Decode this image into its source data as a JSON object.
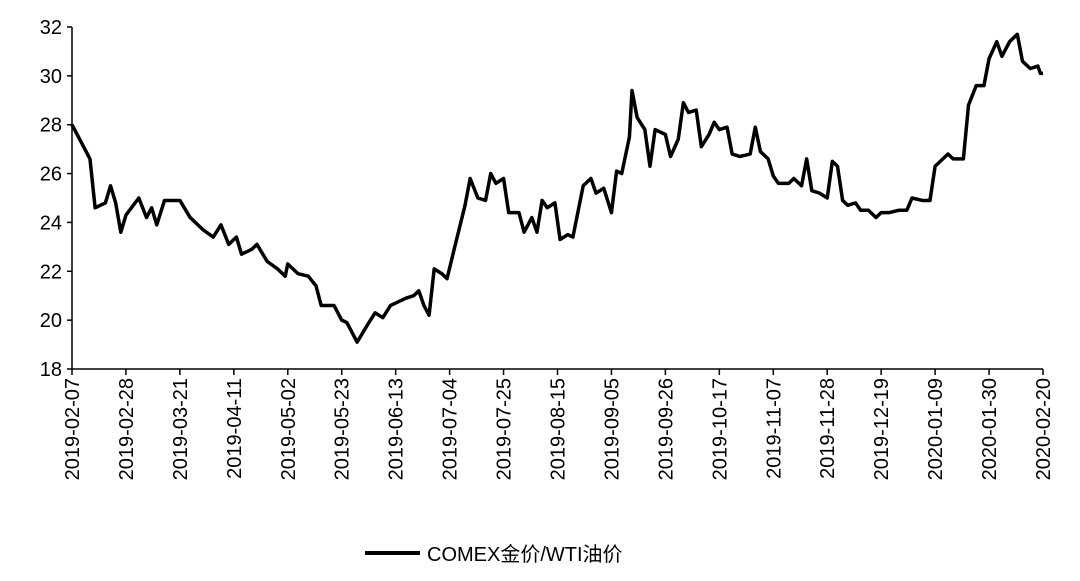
{
  "chart_data": {
    "type": "line",
    "x": [
      "2019-02-07",
      "2019-02-10",
      "2019-02-14",
      "2019-02-16",
      "2019-02-20",
      "2019-02-22",
      "2019-02-24",
      "2019-02-26",
      "2019-02-28",
      "2019-03-05",
      "2019-03-08",
      "2019-03-10",
      "2019-03-12",
      "2019-03-15",
      "2019-03-21",
      "2019-03-25",
      "2019-03-30",
      "2019-04-03",
      "2019-04-06",
      "2019-04-09",
      "2019-04-12",
      "2019-04-14",
      "2019-04-18",
      "2019-04-20",
      "2019-04-24",
      "2019-04-28",
      "2019-05-01",
      "2019-05-02",
      "2019-05-06",
      "2019-05-10",
      "2019-05-13",
      "2019-05-15",
      "2019-05-20",
      "2019-05-23",
      "2019-05-25",
      "2019-05-29",
      "2019-06-02",
      "2019-06-05",
      "2019-06-08",
      "2019-06-11",
      "2019-06-13",
      "2019-06-17",
      "2019-06-20",
      "2019-06-22",
      "2019-06-24",
      "2019-06-26",
      "2019-06-28",
      "2019-07-01",
      "2019-07-03",
      "2019-07-06",
      "2019-07-10",
      "2019-07-12",
      "2019-07-15",
      "2019-07-18",
      "2019-07-20",
      "2019-07-22",
      "2019-07-25",
      "2019-07-27",
      "2019-07-31",
      "2019-08-02",
      "2019-08-05",
      "2019-08-07",
      "2019-08-09",
      "2019-08-11",
      "2019-08-14",
      "2019-08-16",
      "2019-08-19",
      "2019-08-21",
      "2019-08-25",
      "2019-08-28",
      "2019-08-30",
      "2019-09-02",
      "2019-09-05",
      "2019-09-07",
      "2019-09-09",
      "2019-09-12",
      "2019-09-13",
      "2019-09-15",
      "2019-09-18",
      "2019-09-20",
      "2019-09-22",
      "2019-09-26",
      "2019-09-28",
      "2019-10-01",
      "2019-10-03",
      "2019-10-05",
      "2019-10-08",
      "2019-10-10",
      "2019-10-13",
      "2019-10-15",
      "2019-10-17",
      "2019-10-20",
      "2019-10-22",
      "2019-10-25",
      "2019-10-29",
      "2019-10-31",
      "2019-11-02",
      "2019-11-05",
      "2019-11-07",
      "2019-11-09",
      "2019-11-13",
      "2019-11-15",
      "2019-11-18",
      "2019-11-20",
      "2019-11-22",
      "2019-11-25",
      "2019-11-28",
      "2019-11-30",
      "2019-12-02",
      "2019-12-04",
      "2019-12-06",
      "2019-12-09",
      "2019-12-11",
      "2019-12-14",
      "2019-12-17",
      "2019-12-19",
      "2019-12-22",
      "2019-12-26",
      "2019-12-29",
      "2019-12-31",
      "2020-01-04",
      "2020-01-07",
      "2020-01-09",
      "2020-01-11",
      "2020-01-14",
      "2020-01-16",
      "2020-01-20",
      "2020-01-22",
      "2020-01-25",
      "2020-01-28",
      "2020-01-30",
      "2020-02-02",
      "2020-02-04",
      "2020-02-07",
      "2020-02-10",
      "2020-02-12",
      "2020-02-15",
      "2020-02-18",
      "2020-02-19",
      "2020-02-20"
    ],
    "series": [
      {
        "name": "COMEX金价/WTI油价",
        "color": "#000000",
        "values": [
          28.0,
          27.4,
          26.6,
          24.6,
          24.8,
          25.5,
          24.8,
          23.6,
          24.3,
          25.0,
          24.2,
          24.6,
          23.9,
          24.9,
          24.9,
          24.2,
          23.7,
          23.4,
          23.9,
          23.1,
          23.4,
          22.7,
          22.9,
          23.1,
          22.4,
          22.1,
          21.8,
          22.3,
          21.9,
          21.8,
          21.4,
          20.6,
          20.6,
          20.0,
          19.9,
          19.1,
          19.8,
          20.3,
          20.1,
          20.6,
          20.7,
          20.9,
          21.0,
          21.2,
          20.6,
          20.2,
          22.1,
          21.9,
          21.7,
          23.0,
          24.7,
          25.8,
          25.0,
          24.9,
          26.0,
          25.6,
          25.8,
          24.4,
          24.4,
          23.6,
          24.2,
          23.6,
          24.9,
          24.6,
          24.8,
          23.3,
          23.5,
          23.4,
          25.5,
          25.8,
          25.2,
          25.4,
          24.4,
          26.1,
          26.0,
          27.5,
          29.4,
          28.3,
          27.8,
          26.3,
          27.8,
          27.6,
          26.7,
          27.4,
          28.9,
          28.5,
          28.6,
          27.1,
          27.6,
          28.1,
          27.8,
          27.9,
          26.8,
          26.7,
          26.8,
          27.9,
          26.9,
          26.6,
          25.9,
          25.6,
          25.6,
          25.8,
          25.5,
          26.6,
          25.3,
          25.2,
          25.0,
          26.5,
          26.3,
          24.9,
          24.7,
          24.8,
          24.5,
          24.5,
          24.2,
          24.4,
          24.4,
          24.5,
          24.5,
          25.0,
          24.9,
          24.9,
          26.3,
          26.5,
          26.8,
          26.6,
          26.6,
          28.8,
          29.6,
          29.6,
          30.7,
          31.4,
          30.8,
          31.4,
          31.7,
          30.6,
          30.3,
          30.4,
          30.1,
          30.1
        ]
      }
    ],
    "xlim": [
      "2019-02-07",
      "2020-02-20"
    ],
    "xticks": [
      "2019-02-07",
      "2019-02-28",
      "2019-03-21",
      "2019-04-11",
      "2019-05-02",
      "2019-05-23",
      "2019-06-13",
      "2019-07-04",
      "2019-07-25",
      "2019-08-15",
      "2019-09-05",
      "2019-09-26",
      "2019-10-17",
      "2019-11-07",
      "2019-11-28",
      "2019-12-19",
      "2020-01-09",
      "2020-01-30",
      "2020-02-20"
    ],
    "ylim": [
      18,
      32
    ],
    "yticks": [
      18,
      20,
      22,
      24,
      26,
      28,
      30,
      32
    ],
    "grid": false,
    "legend": "bottom"
  }
}
